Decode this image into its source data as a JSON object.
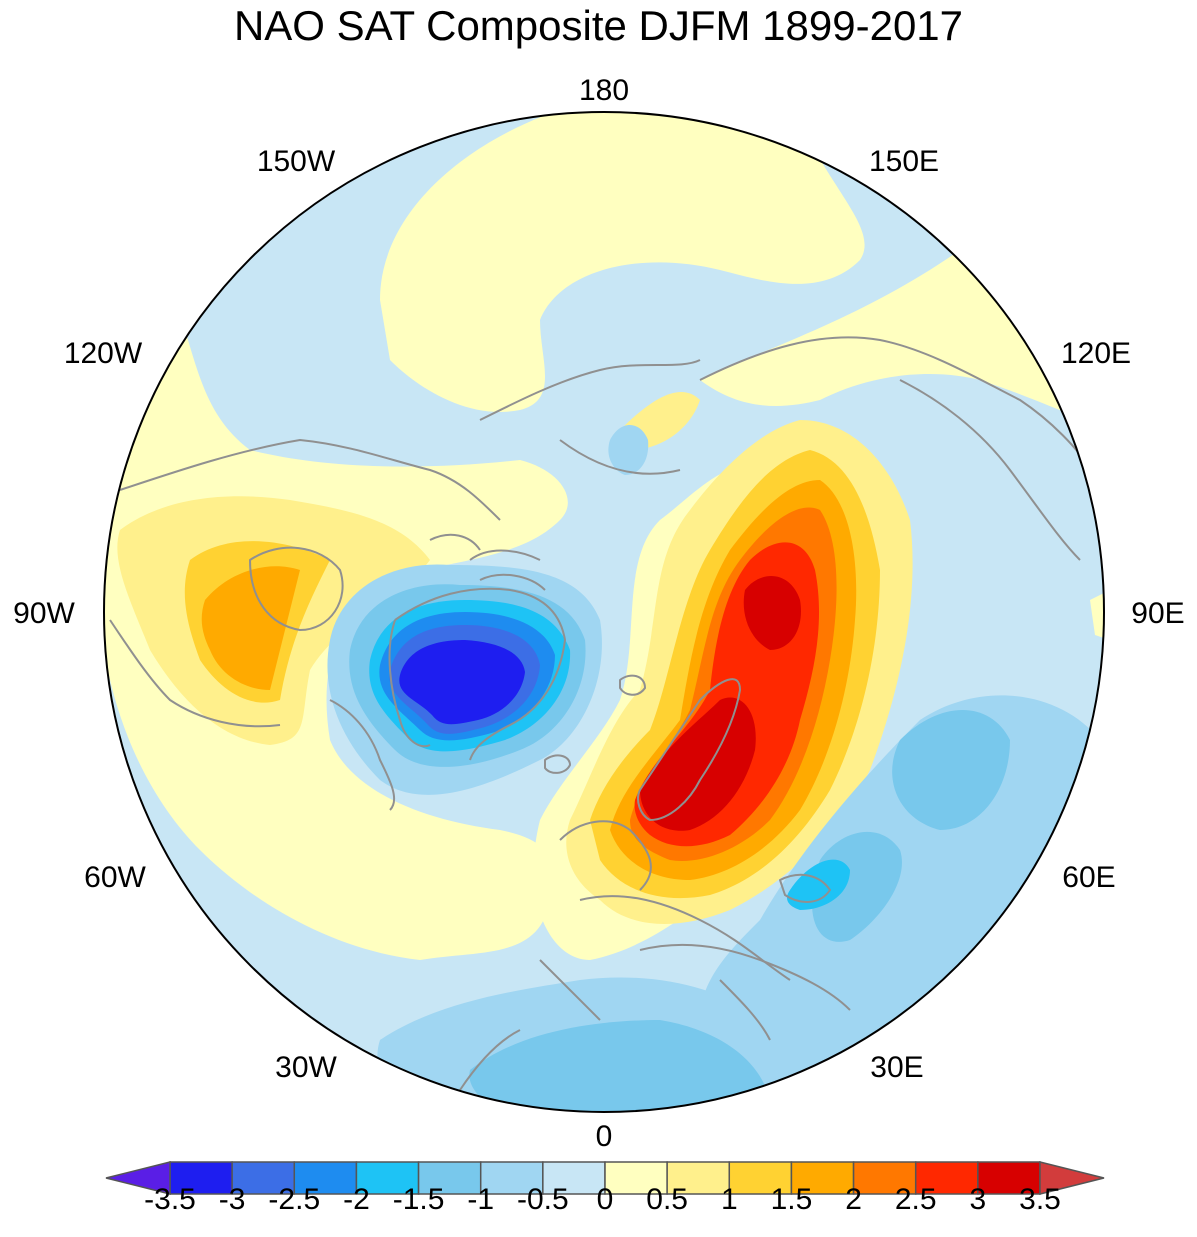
{
  "title": "NAO SAT Composite DJFM 1899-2017",
  "longitude_labels": [
    "180",
    "150E",
    "120E",
    "90E",
    "60E",
    "30E",
    "0",
    "30W",
    "60W",
    "90W",
    "120W",
    "150W"
  ],
  "colorbar": {
    "colors": [
      "#1e1ef0",
      "#3c6ee6",
      "#1e8cf0",
      "#1ec3f5",
      "#78c8ec",
      "#a0d6f2",
      "#c8e6f5",
      "#ffffc0",
      "#fff08c",
      "#ffd232",
      "#ffaa00",
      "#ff7800",
      "#ff2800",
      "#d70000"
    ],
    "under_color": "#5a1ee6",
    "over_color": "#d23c3c",
    "tick_labels": [
      "-3.5",
      "-3",
      "-2.5",
      "-2",
      "-1.5",
      "-1",
      "-0.5",
      "0",
      "0.5",
      "1",
      "1.5",
      "2",
      "2.5",
      "3",
      "3.5"
    ]
  },
  "map": {
    "projection": "polar stereographic (north pole)",
    "pole_at_top_meridian": "180",
    "coastline_color": "#909090",
    "anomaly_regions": [
      {
        "area": "Greenland / Baffin Bay",
        "value_range": [
          -3.5,
          -1.5
        ],
        "sign": "negative"
      },
      {
        "area": "Scandinavia / Northern Europe",
        "value_range": [
          2.5,
          3.5
        ],
        "sign": "positive"
      },
      {
        "area": "Northern Siberia",
        "value_range": [
          2.5,
          3.0
        ],
        "sign": "positive"
      },
      {
        "area": "Central North America",
        "value_range": [
          1.0,
          2.0
        ],
        "sign": "positive"
      },
      {
        "area": "Middle East / North Africa",
        "value_range": [
          -2.0,
          -0.5
        ],
        "sign": "negative"
      }
    ]
  }
}
